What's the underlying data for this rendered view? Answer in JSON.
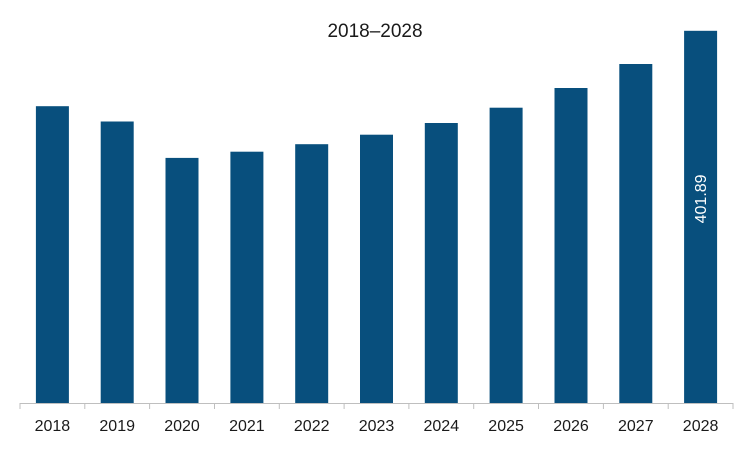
{
  "chart_data": {
    "type": "bar",
    "title": "2018–2028",
    "xlabel": "",
    "ylabel": "",
    "categories": [
      "2018",
      "2019",
      "2020",
      "2021",
      "2022",
      "2023",
      "2024",
      "2025",
      "2026",
      "2027",
      "2028"
    ],
    "series": [
      {
        "values": [
          320.5,
          303.9,
          264.6,
          271.3,
          279.4,
          289.7,
          302.3,
          318.8,
          340.1,
          366.0,
          401.89
        ],
        "color": "#084f7d"
      }
    ],
    "data_labels": [
      {
        "category": "2028",
        "text": "401.89",
        "orientation": "vertical"
      }
    ],
    "ylim": [
      0,
      420
    ],
    "grid": false,
    "legend": "none",
    "axis_color": "#bfbfbf"
  }
}
